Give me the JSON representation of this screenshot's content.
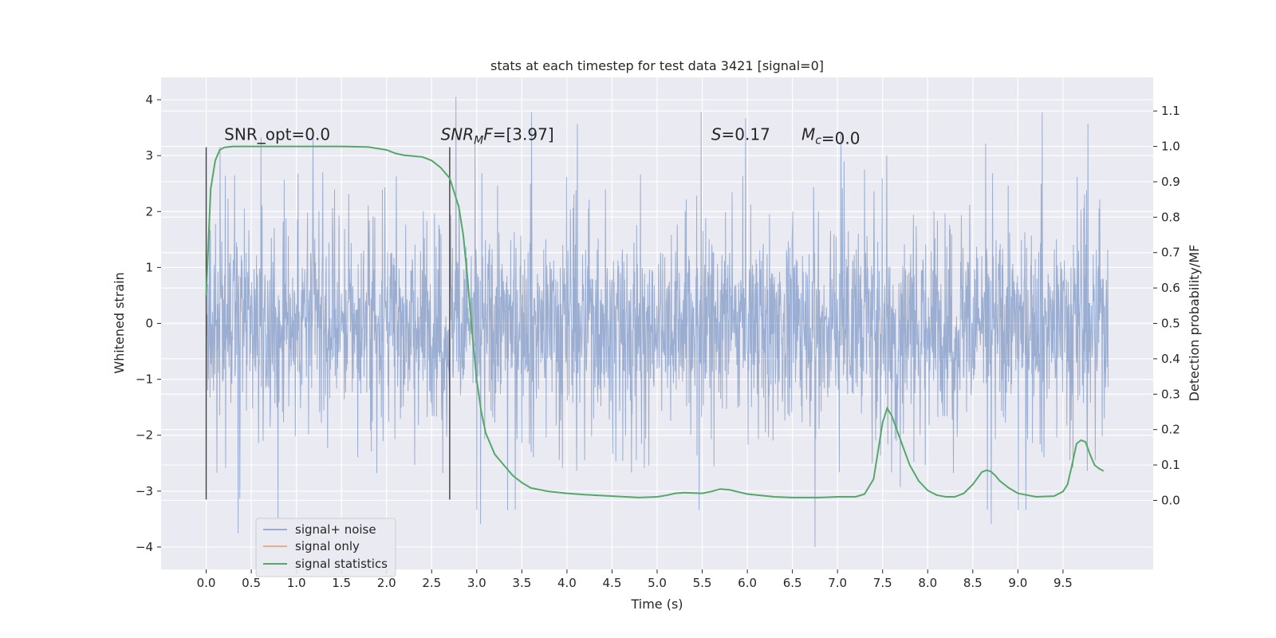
{
  "chart_data": {
    "type": "line",
    "title": "stats at each timestep for test data 3421 [signal=0]",
    "xlabel": "Time (s)",
    "ylabel": "Whitened strain",
    "y2label": "Detection probability/MF",
    "xlim": [
      -0.5,
      10.5
    ],
    "ylim": [
      -4.4,
      4.4
    ],
    "y2lim": [
      -0.195,
      1.195
    ],
    "x_ticks": [
      "0.0",
      "0.5",
      "1.0",
      "1.5",
      "2.0",
      "2.5",
      "3.0",
      "3.5",
      "4.0",
      "4.5",
      "5.0",
      "5.5",
      "6.0",
      "6.5",
      "7.0",
      "7.5",
      "8.0",
      "8.5",
      "9.0",
      "9.5"
    ],
    "y_ticks": [
      "4",
      "3",
      "2",
      "1",
      "0",
      "−1",
      "−2",
      "−3",
      "−4"
    ],
    "y2_ticks": [
      "1.1",
      "1.0",
      "0.9",
      "0.8",
      "0.7",
      "0.6",
      "0.5",
      "0.4",
      "0.3",
      "0.2",
      "0.1",
      "0.0"
    ],
    "grid": true,
    "legend_position": "lower-left",
    "colors": {
      "noise": "#4c72b0",
      "signal_only": "#dd8452",
      "statistics": "#55a868",
      "background": "#eaeaf2"
    },
    "series": [
      {
        "name": "signal+ noise",
        "kind": "noise_strain",
        "x_range": [
          0,
          10
        ],
        "y_typical_range": [
          -2.0,
          2.0
        ],
        "y_extremes": [
          -4.0,
          4.05
        ]
      },
      {
        "name": "signal only",
        "values": []
      },
      {
        "name": "signal statistics",
        "axis": "right",
        "x": [
          0.0,
          0.05,
          0.1,
          0.15,
          0.2,
          0.3,
          0.5,
          1.0,
          1.5,
          1.8,
          2.0,
          2.1,
          2.2,
          2.4,
          2.5,
          2.6,
          2.7,
          2.8,
          2.85,
          2.9,
          2.95,
          3.0,
          3.05,
          3.1,
          3.2,
          3.3,
          3.4,
          3.5,
          3.6,
          3.8,
          4.0,
          4.2,
          4.5,
          4.8,
          5.0,
          5.1,
          5.2,
          5.3,
          5.5,
          5.6,
          5.7,
          5.8,
          6.0,
          6.3,
          6.5,
          6.8,
          7.0,
          7.2,
          7.3,
          7.4,
          7.5,
          7.55,
          7.6,
          7.7,
          7.8,
          7.9,
          8.0,
          8.1,
          8.2,
          8.3,
          8.4,
          8.5,
          8.6,
          8.65,
          8.7,
          8.75,
          8.8,
          8.9,
          9.0,
          9.2,
          9.4,
          9.5,
          9.55,
          9.6,
          9.65,
          9.7,
          9.75,
          9.8,
          9.85,
          9.9,
          9.95
        ],
        "values": [
          0.58,
          0.88,
          0.96,
          0.99,
          0.997,
          1.0,
          1.0,
          1.0,
          1.0,
          0.998,
          0.99,
          0.98,
          0.975,
          0.97,
          0.96,
          0.94,
          0.91,
          0.83,
          0.75,
          0.62,
          0.47,
          0.34,
          0.25,
          0.19,
          0.13,
          0.1,
          0.07,
          0.05,
          0.035,
          0.025,
          0.02,
          0.016,
          0.012,
          0.008,
          0.01,
          0.014,
          0.02,
          0.022,
          0.02,
          0.025,
          0.032,
          0.03,
          0.018,
          0.01,
          0.008,
          0.008,
          0.01,
          0.01,
          0.018,
          0.06,
          0.22,
          0.26,
          0.24,
          0.17,
          0.1,
          0.055,
          0.028,
          0.015,
          0.01,
          0.01,
          0.02,
          0.045,
          0.08,
          0.085,
          0.082,
          0.07,
          0.055,
          0.035,
          0.02,
          0.01,
          0.012,
          0.025,
          0.045,
          0.1,
          0.16,
          0.17,
          0.165,
          0.13,
          0.1,
          0.09,
          0.083
        ]
      }
    ],
    "vlines_x": [
      0.0,
      2.7
    ],
    "vline_range_y": [
      -3.15,
      3.15
    ],
    "annotations": [
      {
        "text": "SNR_opt=0.0",
        "x": 0.2,
        "y": 3.28
      },
      {
        "text": "SNR_MF=[3.97]",
        "x": 2.6,
        "y": 3.28
      },
      {
        "text": "S=0.17",
        "x": 5.6,
        "y": 3.28
      },
      {
        "text": "M_c=0.0",
        "x": 6.6,
        "y": 3.28
      }
    ]
  }
}
